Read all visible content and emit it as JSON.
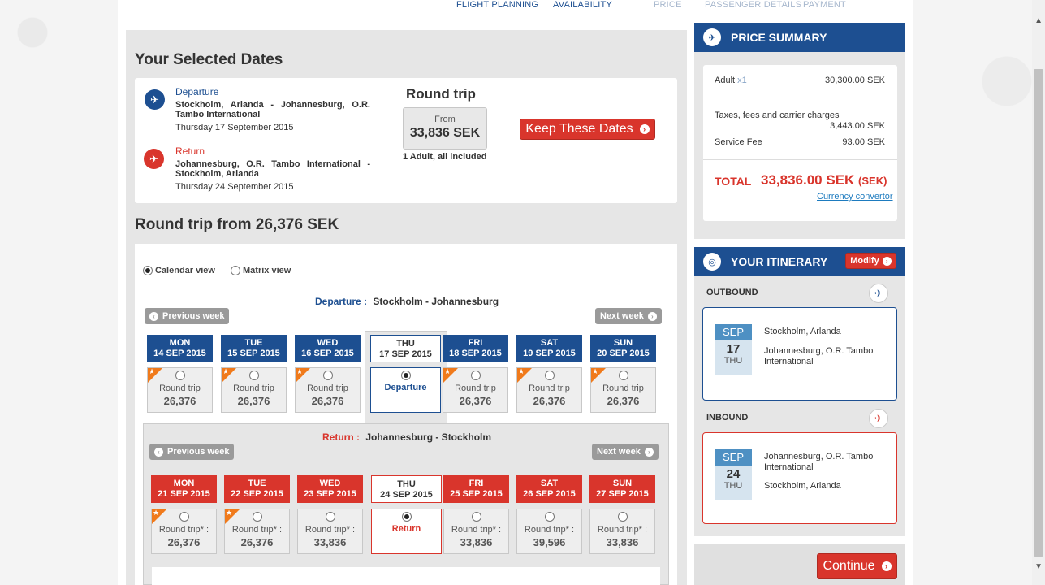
{
  "steps": {
    "flight_planning": "FLIGHT PLANNING",
    "availability": "AVAILABILITY",
    "price": "PRICE",
    "passenger_details": "PASSENGER DETAILS",
    "payment": "PAYMENT"
  },
  "selected": {
    "title": "Your Selected Dates",
    "departure_label": "Departure",
    "departure_route": "Stockholm, Arlanda - Johannesburg, O.R. Tambo International",
    "departure_date": "Thursday 17 September 2015",
    "return_label": "Return",
    "return_route": "Johannesburg, O.R. Tambo International - Stockholm, Arlanda",
    "return_date": "Thursday 24 September 2015",
    "trip_type": "Round trip",
    "from_label": "From",
    "from_amount": "33,836 SEK",
    "pax_note": "1 Adult, all included",
    "keep_button": "Keep These Dates"
  },
  "calendar": {
    "title": "Round trip from 26,376 SEK",
    "view_calendar": "Calendar view",
    "view_matrix": "Matrix view",
    "prev_week": "Previous week",
    "next_week": "Next week",
    "departure": {
      "label": "Departure :",
      "route": "Stockholm - Johannesburg",
      "selected_label": "Departure",
      "days": [
        {
          "dow": "MON",
          "date": "14 SEP 2015",
          "rt": "Round trip",
          "price": "26,376"
        },
        {
          "dow": "TUE",
          "date": "15 SEP 2015",
          "rt": "Round trip",
          "price": "26,376"
        },
        {
          "dow": "WED",
          "date": "16 SEP 2015",
          "rt": "Round trip",
          "price": "26,376"
        },
        {
          "dow": "THU",
          "date": "17 SEP 2015",
          "rt": "",
          "price": ""
        },
        {
          "dow": "FRI",
          "date": "18 SEP 2015",
          "rt": "Round trip",
          "price": "26,376"
        },
        {
          "dow": "SAT",
          "date": "19 SEP 2015",
          "rt": "Round trip",
          "price": "26,376"
        },
        {
          "dow": "SUN",
          "date": "20 SEP 2015",
          "rt": "Round trip",
          "price": "26,376"
        }
      ]
    },
    "return": {
      "label": "Return :",
      "route": "Johannesburg - Stockholm",
      "selected_label": "Return",
      "days": [
        {
          "dow": "MON",
          "date": "21 SEP 2015",
          "rt": "Round trip* :",
          "price": "26,376"
        },
        {
          "dow": "TUE",
          "date": "22 SEP 2015",
          "rt": "Round trip* :",
          "price": "26,376"
        },
        {
          "dow": "WED",
          "date": "23 SEP 2015",
          "rt": "Round trip* :",
          "price": "33,836"
        },
        {
          "dow": "THU",
          "date": "24 SEP 2015",
          "rt": "",
          "price": ""
        },
        {
          "dow": "FRI",
          "date": "25 SEP 2015",
          "rt": "Round trip* :",
          "price": "33,836"
        },
        {
          "dow": "SAT",
          "date": "26 SEP 2015",
          "rt": "Round trip* :",
          "price": "39,596"
        },
        {
          "dow": "SUN",
          "date": "27 SEP 2015",
          "rt": "Round trip* :",
          "price": "33,836"
        }
      ]
    }
  },
  "price_summary": {
    "title": "PRICE SUMMARY",
    "adult_label": "Adult",
    "adult_qty": "x1",
    "adult_value": "30,300.00 SEK",
    "taxes_label": "Taxes, fees and carrier charges",
    "taxes_value": "3,443.00 SEK",
    "service_label": "Service Fee",
    "service_value": "93.00 SEK",
    "total_label": "TOTAL",
    "total_value": "33,836.00 SEK",
    "total_currency": "(SEK)",
    "currency_link": "Currency convertor"
  },
  "itinerary": {
    "title": "YOUR ITINERARY",
    "modify": "Modify",
    "outbound_label": "OUTBOUND",
    "outbound_month": "SEP",
    "outbound_day": "17",
    "outbound_dow": "THU",
    "outbound_from": "Stockholm, Arlanda",
    "outbound_to": "Johannesburg, O.R. Tambo International",
    "inbound_label": "INBOUND",
    "inbound_month": "SEP",
    "inbound_day": "24",
    "inbound_dow": "THU",
    "inbound_from": "Johannesburg, O.R. Tambo International",
    "inbound_to": "Stockholm, Arlanda"
  },
  "continue_button": "Continue",
  "colors": {
    "brand_blue": "#1d4f91",
    "accent_red": "#d9352c",
    "star_orange": "#f07a1b"
  }
}
